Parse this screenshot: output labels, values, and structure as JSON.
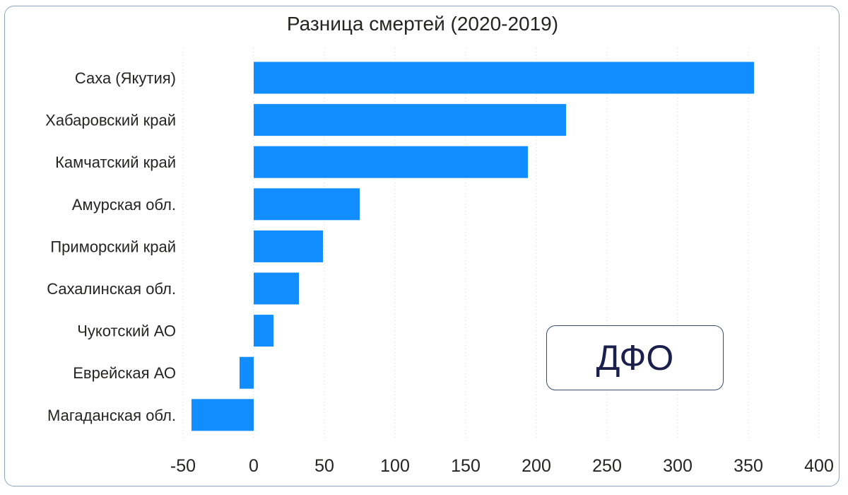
{
  "chart_data": {
    "type": "bar",
    "orientation": "horizontal",
    "title": "Разница смертей (2020-2019)",
    "categories": [
      "Саха (Якутия)",
      "Хабаровский край",
      "Камчатский край",
      "Амурская обл.",
      "Приморский край",
      "Сахалинская обл.",
      "Чукотский АО",
      "Еврейская АО",
      "Магаданская обл."
    ],
    "values": [
      354,
      221,
      194,
      75,
      49,
      32,
      14,
      -10,
      -44
    ],
    "xlim": [
      -50,
      400
    ],
    "xticks": [
      -50,
      0,
      50,
      100,
      150,
      200,
      250,
      300,
      350,
      400
    ],
    "grid": "vertical dotted",
    "bar_color": "#118dff"
  },
  "badge": {
    "label": "ДФО"
  }
}
